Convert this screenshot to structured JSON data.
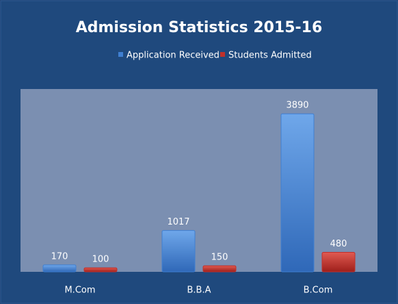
{
  "chart_data": {
    "type": "bar",
    "title": "Admission Statistics 2015-16",
    "categories": [
      "M.Com",
      "B.B.A",
      "B.Com"
    ],
    "series": [
      {
        "name": "Application Received",
        "color": "#3f7fd1",
        "values": [
          170,
          1017,
          3890
        ]
      },
      {
        "name": "Students Admitted",
        "color": "#c0302a",
        "values": [
          100,
          150,
          480
        ]
      }
    ],
    "ylim": [
      0,
      4500
    ],
    "legend": "top"
  }
}
